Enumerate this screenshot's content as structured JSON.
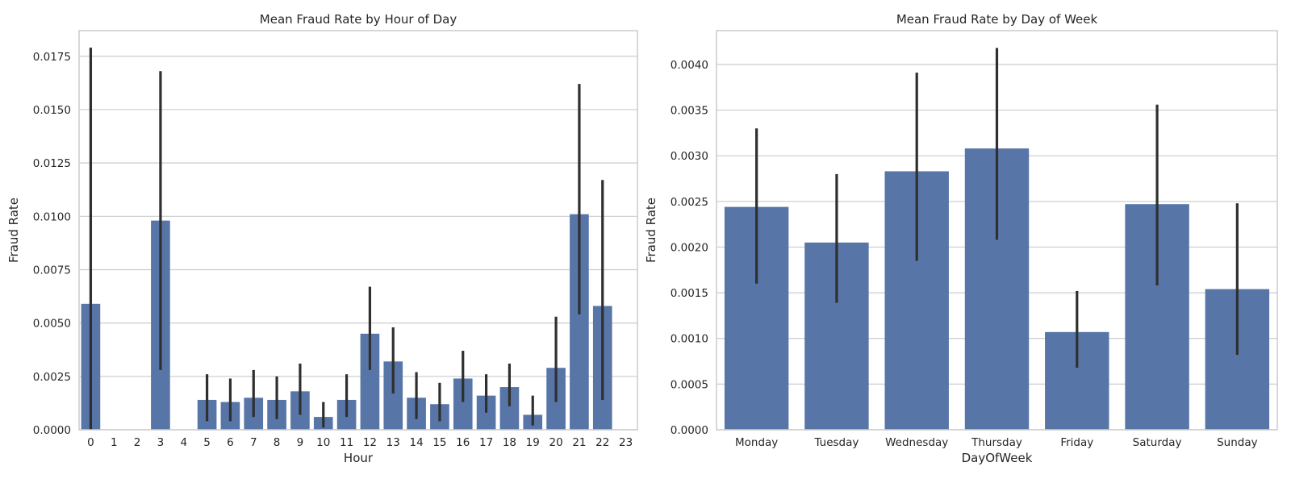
{
  "colors": {
    "bar": "#5875a8",
    "error_bar": "#2f2f2f",
    "grid": "#cccccc",
    "axes_edge": "#cccccc",
    "background": "#ffffff"
  },
  "chart_data": [
    {
      "type": "bar",
      "title": "Mean Fraud Rate by Hour of Day",
      "xlabel": "Hour",
      "ylabel": "Fraud Rate",
      "categories": [
        "0",
        "1",
        "2",
        "3",
        "4",
        "5",
        "6",
        "7",
        "8",
        "9",
        "10",
        "11",
        "12",
        "13",
        "14",
        "15",
        "16",
        "17",
        "18",
        "19",
        "20",
        "21",
        "22",
        "23"
      ],
      "values": [
        0.0059,
        0,
        0,
        0.0098,
        0,
        0.0014,
        0.0013,
        0.0015,
        0.0014,
        0.0018,
        0.0006,
        0.0014,
        0.0045,
        0.0032,
        0.0015,
        0.0012,
        0.0024,
        0.0016,
        0.002,
        0.0007,
        0.0029,
        0.0101,
        0.0058,
        0
      ],
      "error_low": [
        0.0,
        null,
        null,
        0.0028,
        null,
        0.0004,
        0.0004,
        0.0006,
        0.0005,
        0.0007,
        0.0001,
        0.0006,
        0.0028,
        0.0017,
        0.0005,
        0.0004,
        0.0013,
        0.0008,
        0.0011,
        0.0002,
        0.0013,
        0.0054,
        0.0014,
        null
      ],
      "error_high": [
        0.0179,
        null,
        null,
        0.0168,
        null,
        0.0026,
        0.0024,
        0.0028,
        0.0025,
        0.0031,
        0.0013,
        0.0026,
        0.0067,
        0.0048,
        0.0027,
        0.0022,
        0.0037,
        0.0026,
        0.0031,
        0.0016,
        0.0053,
        0.0162,
        0.0117,
        null
      ],
      "ylim": [
        0,
        0.0187
      ],
      "yticks": [
        0,
        0.0025,
        0.005,
        0.0075,
        0.01,
        0.0125,
        0.015,
        0.0175
      ],
      "ytick_labels": [
        "0.0000",
        "0.0025",
        "0.0050",
        "0.0075",
        "0.0100",
        "0.0125",
        "0.0150",
        "0.0175"
      ],
      "grid": "horizontal"
    },
    {
      "type": "bar",
      "title": "Mean Fraud Rate by Day of Week",
      "xlabel": "DayOfWeek",
      "ylabel": "Fraud Rate",
      "categories": [
        "Monday",
        "Tuesday",
        "Wednesday",
        "Thursday",
        "Friday",
        "Saturday",
        "Sunday"
      ],
      "values": [
        0.00244,
        0.00205,
        0.00283,
        0.00308,
        0.00107,
        0.00247,
        0.00154
      ],
      "error_low": [
        0.0016,
        0.00139,
        0.00185,
        0.00208,
        0.00068,
        0.00158,
        0.00082
      ],
      "error_high": [
        0.0033,
        0.0028,
        0.00391,
        0.00418,
        0.00152,
        0.00356,
        0.00248
      ],
      "ylim": [
        0,
        0.00437
      ],
      "yticks": [
        0,
        0.0005,
        0.001,
        0.0015,
        0.002,
        0.0025,
        0.003,
        0.0035,
        0.004
      ],
      "ytick_labels": [
        "0.0000",
        "0.0005",
        "0.0010",
        "0.0015",
        "0.0020",
        "0.0025",
        "0.0030",
        "0.0035",
        "0.0040"
      ],
      "grid": "horizontal"
    }
  ]
}
